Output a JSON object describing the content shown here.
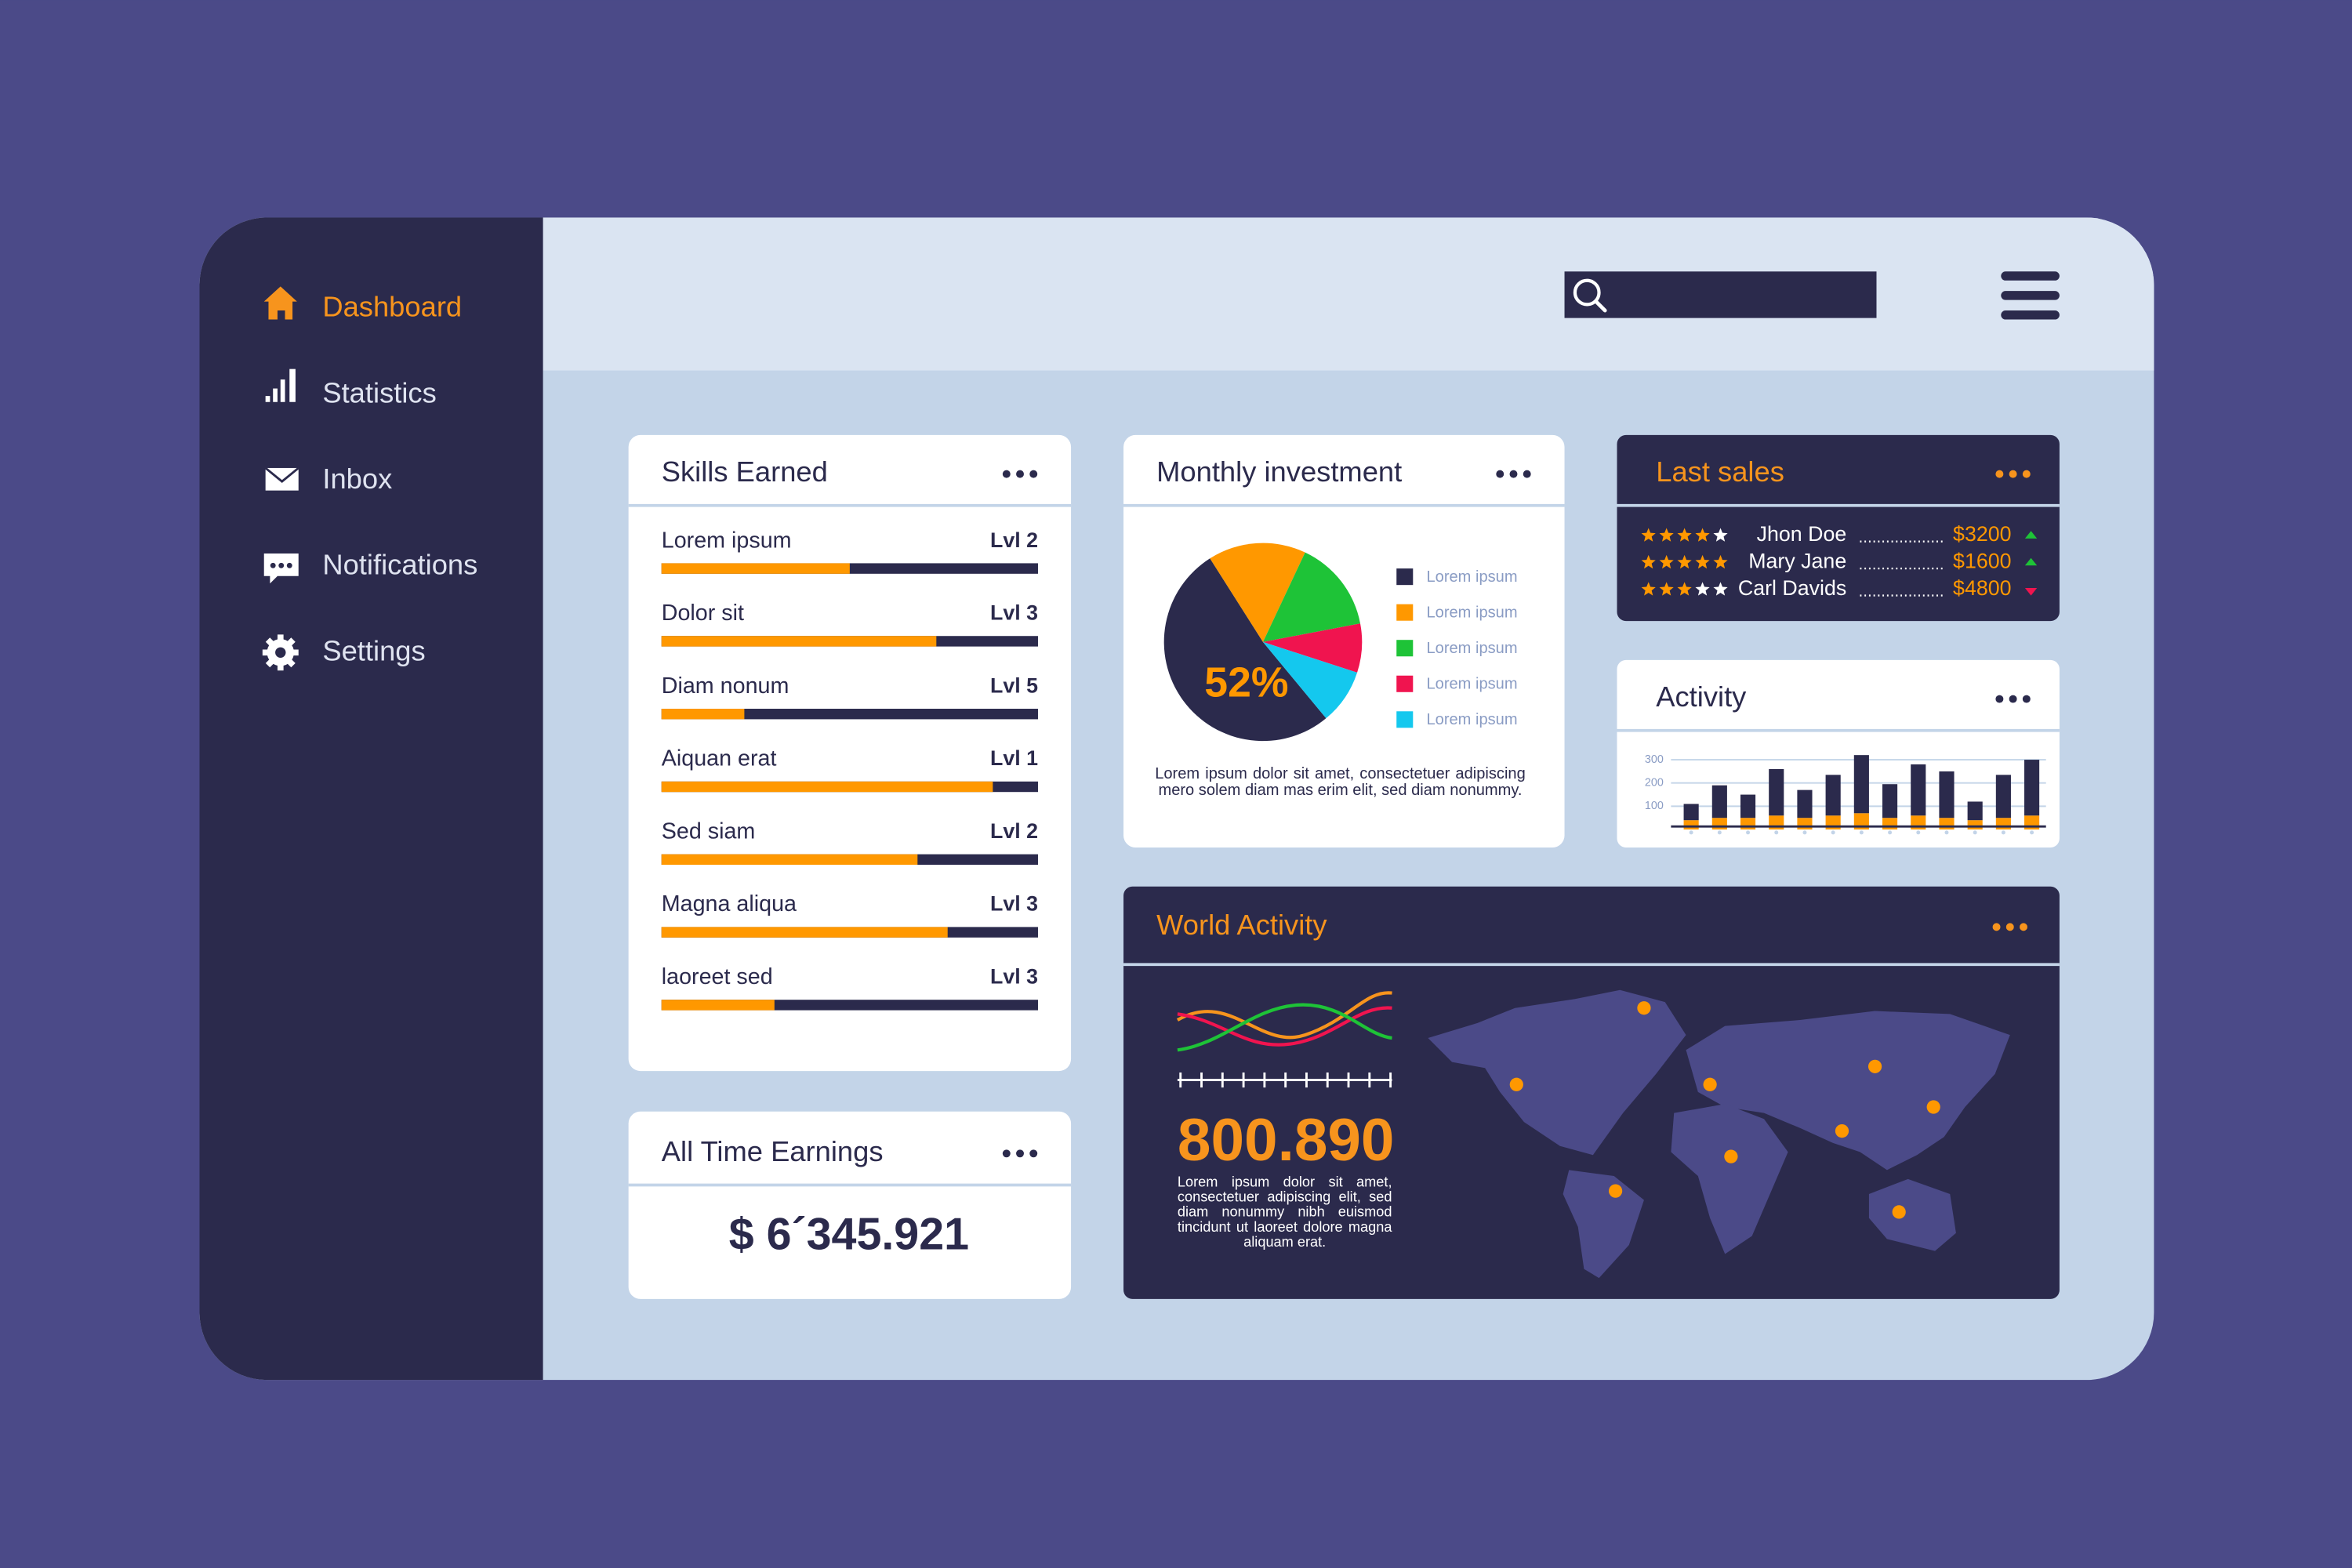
{
  "sidebar": {
    "items": [
      "Dashboard",
      "Statistics",
      "Inbox",
      "Notifications",
      "Settings"
    ],
    "active": 0
  },
  "skills": {
    "title": "Skills Earned",
    "rows": [
      {
        "label": "Lorem ipsum",
        "level": "Lvl 2",
        "progress": 50
      },
      {
        "label": "Dolor sit",
        "level": "Lvl 3",
        "progress": 73
      },
      {
        "label": "Diam nonum",
        "level": "Lvl 5",
        "progress": 22
      },
      {
        "label": "Aiquan erat",
        "level": "Lvl 1",
        "progress": 88
      },
      {
        "label": "Sed siam",
        "level": "Lvl 2",
        "progress": 68
      },
      {
        "label": "Magna aliqua",
        "level": "Lvl 3",
        "progress": 76
      },
      {
        "label": "laoreet sed",
        "level": "Lvl 3",
        "progress": 30
      }
    ]
  },
  "earnings": {
    "title": "All Time Earnings",
    "amount": "$ 6´345.921"
  },
  "investment": {
    "title": "Monthly investment",
    "center_label": "52%",
    "slices": [
      {
        "label": "Lorem ipsum",
        "color": "#2b2a4c",
        "value": 52
      },
      {
        "label": "Lorem ipsum",
        "color": "#ff9800",
        "value": 16
      },
      {
        "label": "Lorem ipsum",
        "color": "#1ec337",
        "value": 15
      },
      {
        "label": "Lorem ipsum",
        "color": "#f0144f",
        "value": 8
      },
      {
        "label": "Lorem ipsum",
        "color": "#14c8ee",
        "value": 9
      }
    ],
    "note": "Lorem ipsum dolor sit amet, consectetuer adipiscing mero solem diam mas erim elit, sed diam nonummy."
  },
  "last_sales": {
    "title": "Last sales",
    "rows": [
      {
        "rating": 4,
        "name": "Jhon Doe",
        "amount": "$3200",
        "trend": "up"
      },
      {
        "rating": 5,
        "name": "Mary Jane",
        "amount": "$1600",
        "trend": "up"
      },
      {
        "rating": 3,
        "name": "Carl Davids",
        "amount": "$4800",
        "trend": "down"
      }
    ]
  },
  "activity": {
    "title": "Activity",
    "type": "bar",
    "ylim": [
      0,
      350
    ],
    "yticks": [
      100,
      200,
      300
    ],
    "grid": true,
    "series": [
      {
        "color": "#ff9800",
        "values": [
          40,
          50,
          50,
          60,
          50,
          60,
          70,
          50,
          60,
          50,
          40,
          50,
          60
        ]
      },
      {
        "color": "#2b2a4c",
        "values": [
          70,
          140,
          100,
          200,
          120,
          175,
          250,
          145,
          220,
          200,
          80,
          185,
          240
        ]
      }
    ]
  },
  "world": {
    "title": "World Activity",
    "value": "800.890",
    "note": "Lorem ipsum dolor sit amet, consectetuer adipiscing elit, sed diam nonummy nibh euismod tincidunt ut laoreet dolore magna aliquam erat."
  }
}
